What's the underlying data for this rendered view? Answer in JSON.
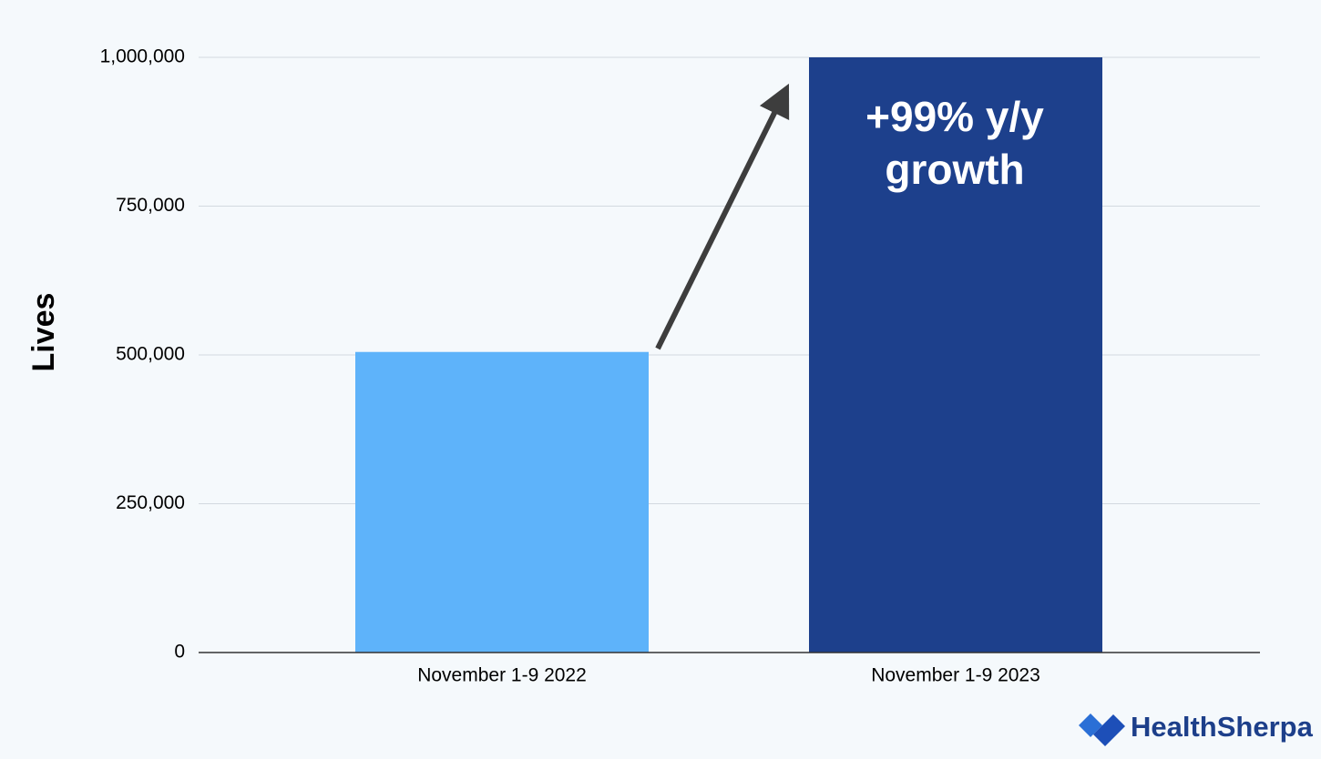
{
  "chart_data": {
    "type": "bar",
    "y_label": "Lives",
    "categories": [
      "November 1-9 2022",
      "November 1-9 2023"
    ],
    "values": [
      505000,
      1000000
    ],
    "colors": [
      "#5eb3fa",
      "#1d408c"
    ],
    "ylim": [
      0,
      1000000
    ],
    "yticks": [
      0,
      {
        "value": 250000,
        "label": "250,000"
      },
      {
        "value": 500000,
        "label": "500,000"
      },
      {
        "value": 750000,
        "label": "750,000"
      },
      {
        "value": 1000000,
        "label": "1,000,000"
      }
    ],
    "grid": true,
    "annotation": [
      "+99% y/y",
      "growth"
    ],
    "brand": "HealthSherpa"
  }
}
